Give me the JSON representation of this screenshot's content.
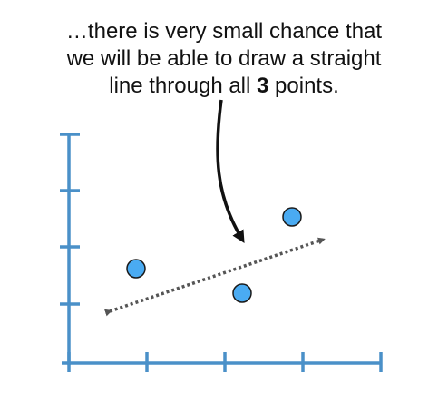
{
  "caption": {
    "line1": "…there is very small chance that",
    "line2": "we will be able to draw a straight",
    "line3_prefix": "line through all ",
    "line3_bold": "3",
    "line3_suffix": " points."
  },
  "diagram": {
    "axis_color": "#4A90C8",
    "point_color": "#4AABF2",
    "point_stroke": "#1A1A1A",
    "dotted_line_color": "#555555",
    "arrow_color": "#111111",
    "points": [
      {
        "name": "point-left"
      },
      {
        "name": "point-middle"
      },
      {
        "name": "point-right"
      }
    ]
  }
}
